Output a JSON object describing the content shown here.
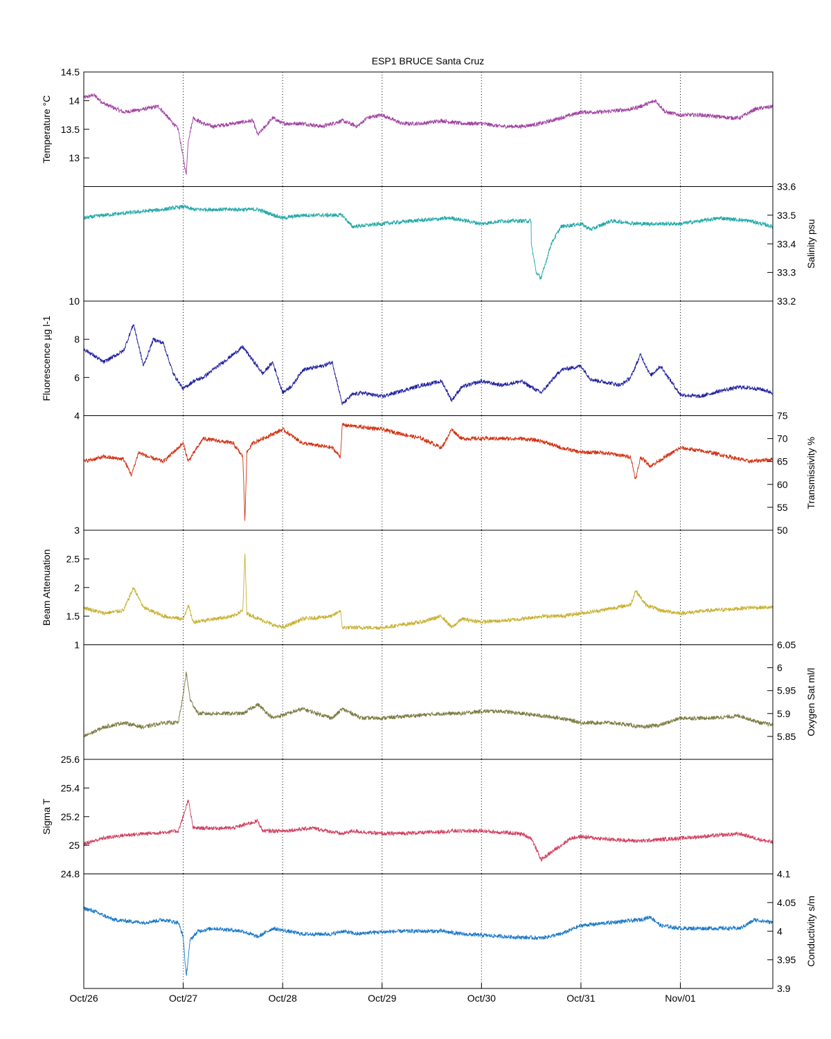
{
  "chart_data": {
    "type": "line",
    "title": "ESP1 BRUCE Santa Cruz",
    "x_tick_labels": [
      "Oct/26",
      "Oct/27",
      "Oct/28",
      "Oct/29",
      "Oct/30",
      "Oct/31",
      "Nov/01"
    ],
    "x_range_days": [
      0,
      6.93
    ],
    "grid": "x-only dotted",
    "panels": [
      {
        "ylabel": "Temperature °C",
        "axis": "left",
        "ylim": [
          12.5,
          14.5
        ],
        "yticks": [
          "13",
          "13.5",
          "14",
          "14.5"
        ],
        "color": "#a040a0",
        "series": {
          "x": [
            0,
            0.1,
            0.2,
            0.4,
            0.6,
            0.75,
            0.85,
            0.95,
            1.0,
            1.03,
            1.05,
            1.1,
            1.2,
            1.3,
            1.5,
            1.7,
            1.75,
            1.9,
            2.0,
            2.2,
            2.4,
            2.6,
            2.75,
            2.85,
            3.0,
            3.2,
            3.4,
            3.6,
            3.8,
            4.0,
            4.2,
            4.4,
            4.6,
            4.8,
            5.0,
            5.2,
            5.5,
            5.6,
            5.75,
            5.85,
            6.0,
            6.2,
            6.5,
            6.6,
            6.75,
            6.93
          ],
          "y": [
            14.05,
            14.1,
            13.95,
            13.8,
            13.85,
            13.9,
            13.7,
            13.5,
            13.0,
            12.7,
            13.3,
            13.7,
            13.6,
            13.55,
            13.6,
            13.65,
            13.4,
            13.7,
            13.6,
            13.6,
            13.55,
            13.65,
            13.55,
            13.7,
            13.75,
            13.6,
            13.6,
            13.65,
            13.6,
            13.6,
            13.55,
            13.55,
            13.6,
            13.7,
            13.8,
            13.8,
            13.85,
            13.9,
            14.0,
            13.8,
            13.75,
            13.75,
            13.7,
            13.7,
            13.85,
            13.9
          ]
        }
      },
      {
        "ylabel": "Salinity psu",
        "axis": "right",
        "ylim": [
          33.2,
          33.6
        ],
        "yticks": [
          "33.2",
          "33.3",
          "33.4",
          "33.5",
          "33.6"
        ],
        "color": "#20a8a8",
        "series": {
          "x": [
            0,
            0.2,
            0.5,
            0.8,
            1.0,
            1.1,
            1.4,
            1.75,
            2.0,
            2.2,
            2.6,
            2.7,
            3.0,
            3.3,
            3.7,
            4.0,
            4.2,
            4.5,
            4.5,
            4.55,
            4.6,
            4.7,
            4.8,
            5.0,
            5.1,
            5.3,
            5.6,
            6.0,
            6.4,
            6.7,
            6.93
          ],
          "y": [
            33.49,
            33.5,
            33.51,
            33.52,
            33.53,
            33.52,
            33.52,
            33.52,
            33.49,
            33.5,
            33.5,
            33.46,
            33.47,
            33.48,
            33.49,
            33.47,
            33.48,
            33.48,
            33.4,
            33.3,
            33.28,
            33.4,
            33.46,
            33.47,
            33.45,
            33.48,
            33.47,
            33.47,
            33.49,
            33.48,
            33.46
          ]
        }
      },
      {
        "ylabel": "Fluorescence µg l-1",
        "axis": "left",
        "ylim": [
          4,
          10
        ],
        "yticks": [
          "4",
          "6",
          "8",
          "10"
        ],
        "color": "#2020a0",
        "series": {
          "x": [
            0,
            0.2,
            0.4,
            0.5,
            0.6,
            0.7,
            0.8,
            0.9,
            1.0,
            1.1,
            1.2,
            1.4,
            1.6,
            1.8,
            1.9,
            2.0,
            2.1,
            2.2,
            2.4,
            2.5,
            2.6,
            2.7,
            2.8,
            3.0,
            3.2,
            3.4,
            3.6,
            3.7,
            3.8,
            4.0,
            4.2,
            4.4,
            4.6,
            4.8,
            5.0,
            5.1,
            5.2,
            5.4,
            5.5,
            5.6,
            5.7,
            5.8,
            6.0,
            6.2,
            6.4,
            6.6,
            6.8,
            6.93
          ],
          "y": [
            7.5,
            6.8,
            7.4,
            8.8,
            6.6,
            8.0,
            7.8,
            6.2,
            5.4,
            5.8,
            6.0,
            6.8,
            7.6,
            6.2,
            6.8,
            5.2,
            5.6,
            6.4,
            6.6,
            6.8,
            4.6,
            5.1,
            5.2,
            5.0,
            5.3,
            5.6,
            5.8,
            4.8,
            5.5,
            5.8,
            5.6,
            5.8,
            5.2,
            6.4,
            6.6,
            5.9,
            5.8,
            5.6,
            6.0,
            7.2,
            6.1,
            6.6,
            5.1,
            5.0,
            5.3,
            5.5,
            5.4,
            5.2
          ]
        }
      },
      {
        "ylabel": "Transmissivity %",
        "axis": "right",
        "ylim": [
          50,
          75
        ],
        "yticks": [
          "50",
          "55",
          "60",
          "65",
          "70",
          "75"
        ],
        "color": "#d03010",
        "series": {
          "x": [
            0,
            0.2,
            0.4,
            0.48,
            0.55,
            0.65,
            0.8,
            0.9,
            1.0,
            1.05,
            1.2,
            1.5,
            1.6,
            1.62,
            1.64,
            1.7,
            2.0,
            2.2,
            2.5,
            2.58,
            2.6,
            2.8,
            3.0,
            3.2,
            3.4,
            3.6,
            3.7,
            3.8,
            4.0,
            4.2,
            4.4,
            4.6,
            4.8,
            5.0,
            5.2,
            5.5,
            5.55,
            5.6,
            5.7,
            6.0,
            6.3,
            6.5,
            6.7,
            6.93
          ],
          "y": [
            65,
            66,
            65.5,
            62,
            67,
            66,
            65,
            67,
            69,
            65,
            70,
            69,
            66,
            52,
            67,
            69,
            72,
            69,
            68,
            66,
            73,
            72.5,
            72,
            71,
            70,
            68,
            72,
            70,
            70,
            70,
            70,
            69.5,
            68,
            67,
            67,
            66,
            61,
            66,
            64,
            68,
            67,
            66,
            65,
            65.5
          ]
        }
      },
      {
        "ylabel": "Beam Attenuation",
        "axis": "left",
        "ylim": [
          1,
          3
        ],
        "yticks": [
          "1",
          "1.5",
          "2",
          "2.5",
          "3"
        ],
        "color": "#c8b030",
        "series": {
          "x": [
            0,
            0.2,
            0.4,
            0.5,
            0.6,
            0.8,
            1.0,
            1.05,
            1.1,
            1.3,
            1.5,
            1.6,
            1.62,
            1.64,
            1.7,
            1.9,
            2.0,
            2.2,
            2.5,
            2.58,
            2.6,
            2.8,
            3.0,
            3.2,
            3.4,
            3.6,
            3.7,
            3.8,
            4.0,
            4.2,
            4.4,
            4.6,
            4.8,
            5.0,
            5.2,
            5.5,
            5.55,
            5.65,
            5.8,
            6.0,
            6.3,
            6.5,
            6.7,
            6.93
          ],
          "y": [
            1.65,
            1.55,
            1.6,
            2.0,
            1.65,
            1.5,
            1.45,
            1.7,
            1.4,
            1.45,
            1.5,
            1.6,
            2.6,
            1.55,
            1.5,
            1.35,
            1.3,
            1.45,
            1.5,
            1.6,
            1.3,
            1.3,
            1.3,
            1.35,
            1.4,
            1.5,
            1.3,
            1.45,
            1.4,
            1.42,
            1.45,
            1.5,
            1.5,
            1.55,
            1.6,
            1.7,
            1.95,
            1.7,
            1.6,
            1.55,
            1.6,
            1.62,
            1.65,
            1.65
          ]
        }
      },
      {
        "ylabel": "Oxygen Sat ml/l",
        "axis": "right",
        "ylim": [
          5.8,
          6.05
        ],
        "yticks": [
          "5.85",
          "5.9",
          "5.95",
          "6",
          "6.05"
        ],
        "color": "#7a7a40",
        "series": {
          "x": [
            0,
            0.2,
            0.4,
            0.6,
            0.8,
            0.95,
            1.0,
            1.03,
            1.07,
            1.15,
            1.3,
            1.6,
            1.75,
            1.9,
            2.2,
            2.5,
            2.6,
            2.8,
            3.0,
            3.3,
            3.6,
            3.8,
            4.0,
            4.2,
            4.4,
            4.6,
            4.8,
            5.0,
            5.3,
            5.5,
            5.6,
            5.8,
            6.0,
            6.3,
            6.6,
            6.8,
            6.93
          ],
          "y": [
            5.85,
            5.87,
            5.88,
            5.87,
            5.88,
            5.88,
            5.94,
            5.99,
            5.93,
            5.9,
            5.9,
            5.9,
            5.92,
            5.89,
            5.91,
            5.89,
            5.91,
            5.89,
            5.89,
            5.895,
            5.9,
            5.9,
            5.905,
            5.905,
            5.9,
            5.895,
            5.89,
            5.88,
            5.88,
            5.875,
            5.87,
            5.875,
            5.89,
            5.89,
            5.895,
            5.88,
            5.875
          ]
        }
      },
      {
        "ylabel": "Sigma T",
        "axis": "left",
        "ylim": [
          24.8,
          25.6
        ],
        "yticks": [
          "24.8",
          "25",
          "25.2",
          "25.4",
          "25.6"
        ],
        "color": "#d04060",
        "series": {
          "x": [
            0,
            0.2,
            0.4,
            0.6,
            0.8,
            0.95,
            1.0,
            1.05,
            1.1,
            1.2,
            1.5,
            1.75,
            1.8,
            2.0,
            2.3,
            2.6,
            2.7,
            3.0,
            3.5,
            3.7,
            4.0,
            4.2,
            4.4,
            4.5,
            4.6,
            4.7,
            4.9,
            5.0,
            5.3,
            5.6,
            6.0,
            6.4,
            6.6,
            6.8,
            6.93
          ],
          "y": [
            25.01,
            25.05,
            25.07,
            25.08,
            25.09,
            25.1,
            25.2,
            25.32,
            25.12,
            25.12,
            25.12,
            25.17,
            25.1,
            25.1,
            25.12,
            25.08,
            25.1,
            25.08,
            25.09,
            25.1,
            25.1,
            25.09,
            25.08,
            25.05,
            24.9,
            24.95,
            25.05,
            25.06,
            25.04,
            25.03,
            25.05,
            25.07,
            25.08,
            25.04,
            25.02
          ]
        }
      },
      {
        "ylabel": "Conductivity s/m",
        "axis": "right",
        "ylim": [
          3.9,
          4.1
        ],
        "yticks": [
          "3.9",
          "3.95",
          "4",
          "4.05",
          "4.1"
        ],
        "color": "#1878c8",
        "series": {
          "x": [
            0,
            0.1,
            0.3,
            0.6,
            0.8,
            0.95,
            1.0,
            1.03,
            1.07,
            1.15,
            1.3,
            1.6,
            1.75,
            1.9,
            2.2,
            2.5,
            2.6,
            2.75,
            2.9,
            3.2,
            3.6,
            3.8,
            4.0,
            4.3,
            4.6,
            4.8,
            5.0,
            5.3,
            5.6,
            5.7,
            5.8,
            6.0,
            6.3,
            6.5,
            6.6,
            6.75,
            6.93
          ],
          "y": [
            4.04,
            4.035,
            4.02,
            4.015,
            4.02,
            4.015,
            3.99,
            3.92,
            3.985,
            4.0,
            4.005,
            4.0,
            3.99,
            4.005,
            3.995,
            3.995,
            4.0,
            3.995,
            3.998,
            4.0,
            4.0,
            3.995,
            3.993,
            3.99,
            3.988,
            3.995,
            4.01,
            4.015,
            4.02,
            4.025,
            4.01,
            4.005,
            4.005,
            4.005,
            4.005,
            4.02,
            4.015
          ]
        }
      }
    ]
  }
}
